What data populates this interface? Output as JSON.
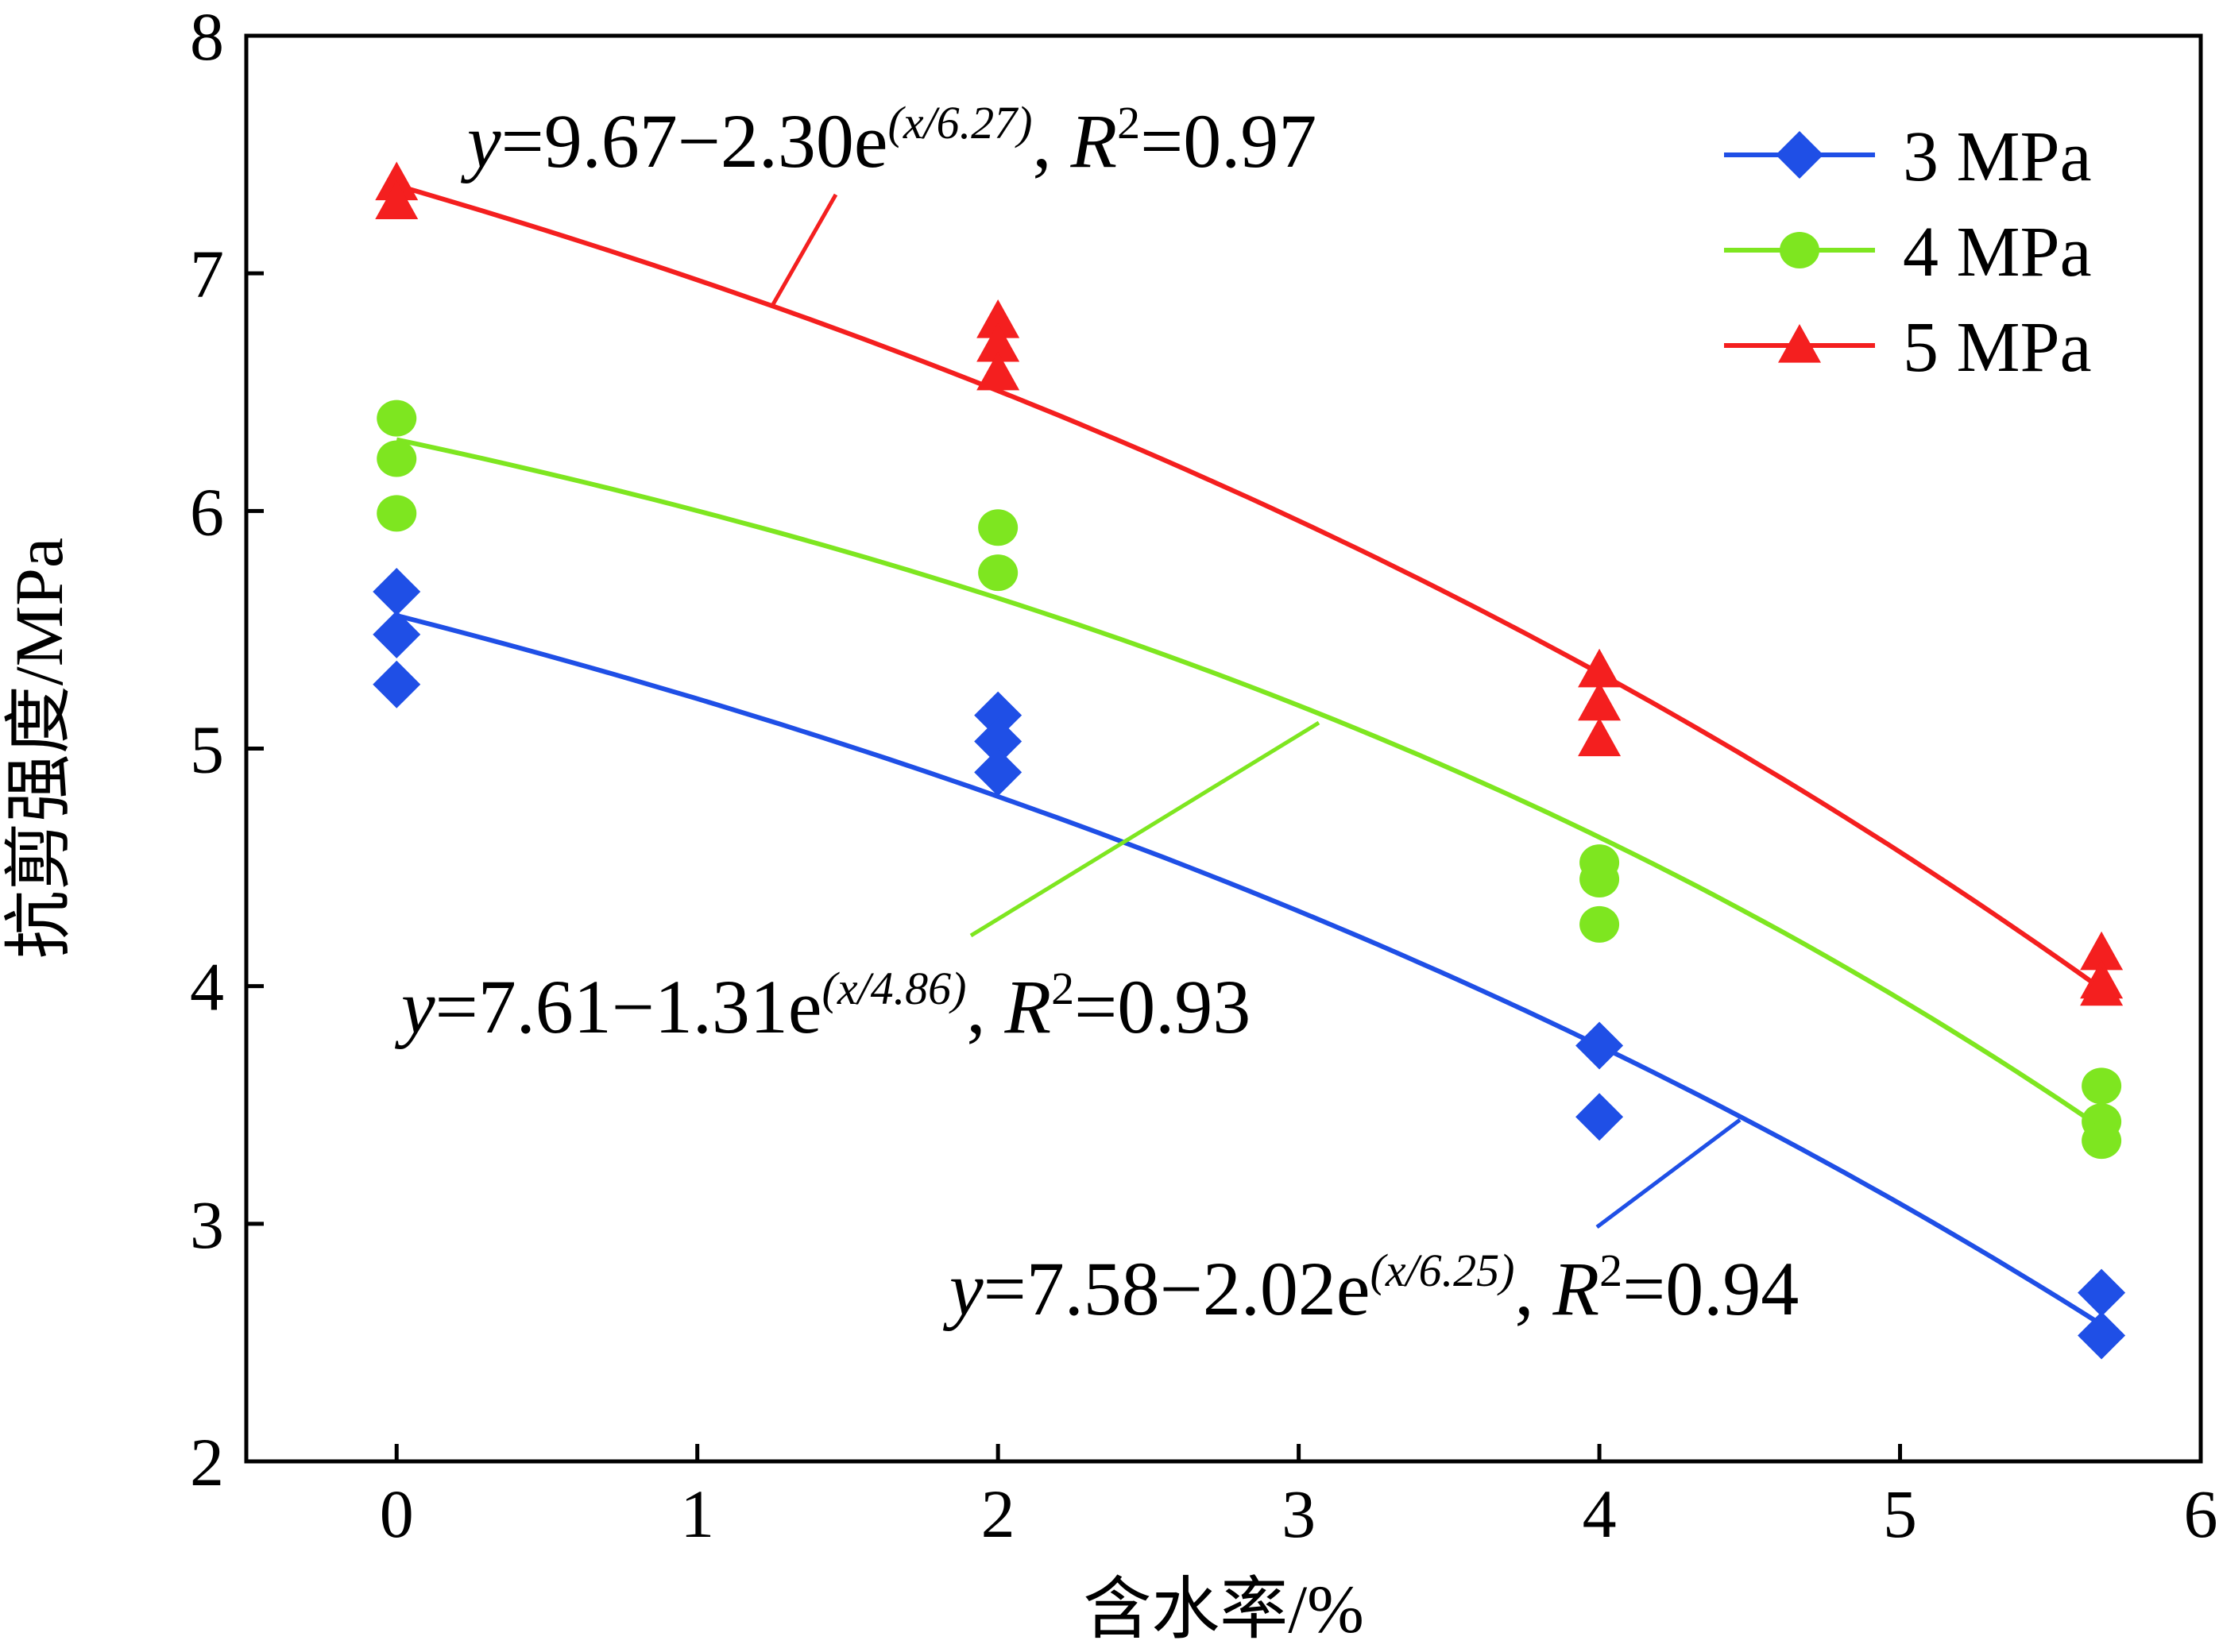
{
  "chart_data": {
    "type": "scatter",
    "xlabel": "含水率/%",
    "ylabel": "抗剪强度/MPa",
    "xlim": [
      -0.5,
      6
    ],
    "ylim": [
      2,
      8
    ],
    "x_ticks": [
      "0",
      "1",
      "2",
      "3",
      "4",
      "5",
      "6"
    ],
    "y_ticks": [
      "2",
      "3",
      "4",
      "5",
      "6",
      "7",
      "8"
    ],
    "grid": false,
    "legend_position": "top-right",
    "series": [
      {
        "name": "3 MPa",
        "color": "#1f4fe6",
        "marker": "diamond",
        "points": [
          {
            "x": 0,
            "y": 5.66
          },
          {
            "x": 0,
            "y": 5.48
          },
          {
            "x": 0,
            "y": 5.27
          },
          {
            "x": 2,
            "y": 5.14
          },
          {
            "x": 2,
            "y": 5.03
          },
          {
            "x": 2,
            "y": 4.9
          },
          {
            "x": 4,
            "y": 3.75
          },
          {
            "x": 4,
            "y": 3.45
          },
          {
            "x": 5.67,
            "y": 2.71
          },
          {
            "x": 5.67,
            "y": 2.53
          }
        ],
        "fit": {
          "a": 7.58,
          "b": 2.02,
          "c": 6.25
        },
        "equation": {
          "lhs": "y",
          "body": "=7.58−2.02e",
          "exp": "(x/6.25)",
          "r_label": "R",
          "r_exp": "2",
          "r_value": "=0.94"
        }
      },
      {
        "name": "4 MPa",
        "color": "#7ee620",
        "marker": "circle",
        "points": [
          {
            "x": 0,
            "y": 6.39
          },
          {
            "x": 0,
            "y": 6.22
          },
          {
            "x": 0,
            "y": 5.99
          },
          {
            "x": 2,
            "y": 5.93
          },
          {
            "x": 2,
            "y": 5.74
          },
          {
            "x": 4,
            "y": 4.52
          },
          {
            "x": 4,
            "y": 4.45
          },
          {
            "x": 4,
            "y": 4.26
          },
          {
            "x": 5.67,
            "y": 3.58
          },
          {
            "x": 5.67,
            "y": 3.43
          },
          {
            "x": 5.67,
            "y": 3.35
          }
        ],
        "fit": {
          "a": 7.61,
          "b": 1.31,
          "c": 4.86
        },
        "equation": {
          "lhs": "y",
          "body": "=7.61−1.31e",
          "exp": "(x/4.86)",
          "r_label": "R",
          "r_exp": "2",
          "r_value": "=0.93"
        }
      },
      {
        "name": "5 MPa",
        "color": "#f41f1f",
        "marker": "triangle",
        "points": [
          {
            "x": 0,
            "y": 7.38
          },
          {
            "x": 0,
            "y": 7.3
          },
          {
            "x": 2,
            "y": 6.8
          },
          {
            "x": 2,
            "y": 6.7
          },
          {
            "x": 2,
            "y": 6.58
          },
          {
            "x": 4,
            "y": 5.33
          },
          {
            "x": 4,
            "y": 5.19
          },
          {
            "x": 4,
            "y": 5.04
          },
          {
            "x": 5.67,
            "y": 4.14
          },
          {
            "x": 5.67,
            "y": 4.02
          },
          {
            "x": 5.67,
            "y": 3.99
          }
        ],
        "fit": {
          "a": 9.67,
          "b": 2.3,
          "c": 6.27
        },
        "equation": {
          "lhs": "y",
          "body": "=9.67−2.30e",
          "exp": "(x/6.27)",
          "r_label": "R",
          "r_exp": "2",
          "r_value": "=0.97"
        }
      }
    ]
  }
}
